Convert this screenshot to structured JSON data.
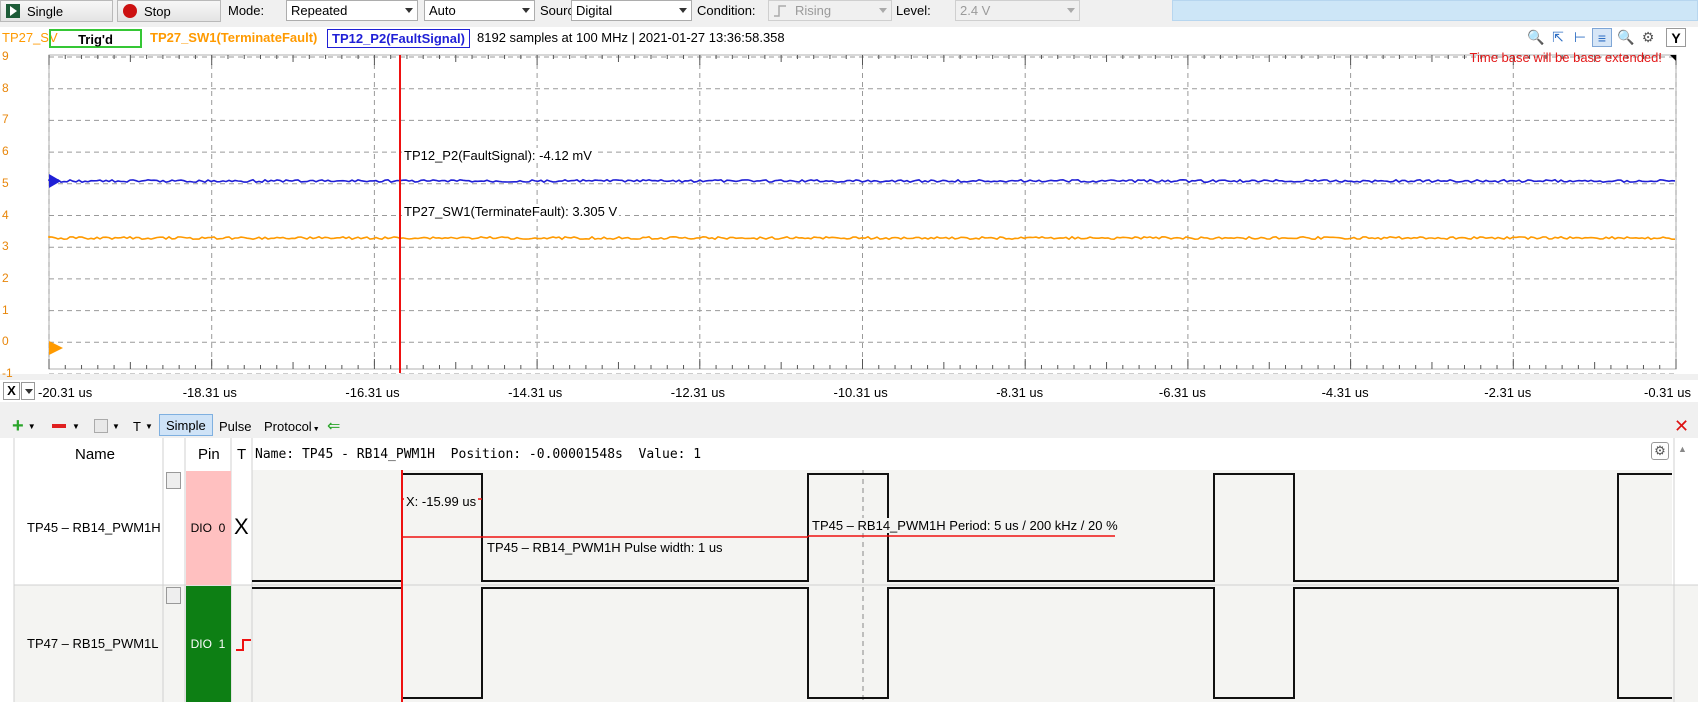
{
  "toolbar": {
    "single_label": "Single",
    "stop_label": "Stop",
    "mode_label": "Mode:",
    "mode_value": "Repeated",
    "trigger_mode_value": "Auto",
    "source_label": "Source:",
    "source_value": "Digital",
    "condition_label": "Condition:",
    "condition_value": "Rising",
    "level_label": "Level:",
    "level_value": "2.4 V"
  },
  "info": {
    "channel_prefix": "TP27_SV",
    "trig_status": "Trig'd",
    "ch1_label": "TP27_SW1(TerminateFault)",
    "ch2_label": "TP12_P2(FaultSignal)",
    "acquisition": "8192 samples at 100 MHz | 2021-01-27 13:36:58.358",
    "warning": "Time base will be base extended!"
  },
  "scope": {
    "y_ticks": [
      "9",
      "8",
      "7",
      "6",
      "5",
      "4",
      "3",
      "2",
      "1",
      "0",
      "-1"
    ],
    "cursor_readout_1": "TP12_P2(FaultSignal): -4.12 mV",
    "cursor_readout_2": "TP27_SW1(TerminateFault): 3.305 V",
    "colors": {
      "ch1": "#ff9a00",
      "ch2": "#1f1fd6",
      "cursor": "#ee1111",
      "trig": "#22cc22"
    }
  },
  "xaxis": {
    "x_button": "X",
    "ticks": [
      "-20.31 us",
      "-18.31 us",
      "-16.31 us",
      "-14.31 us",
      "-12.31 us",
      "-10.31 us",
      "-8.31 us",
      "-6.31 us",
      "-4.31 us",
      "-2.31 us",
      "-0.31 us"
    ]
  },
  "logic_toolbar": {
    "t_label": "T",
    "simple_tab": "Simple",
    "pulse_tab": "Pulse",
    "protocol_tab": "Protocol"
  },
  "logic": {
    "header_name": "Name",
    "header_pin": "Pin",
    "header_t": "T",
    "status_line": "Name: TP45 - RB14_PWM1H  Position: -0.00001548s  Value: 1",
    "signals": [
      {
        "name": "TP45 – RB14_PWM1H",
        "pin_type": "DIO",
        "pin_num": "0",
        "trigger": "X"
      },
      {
        "name": "TP47 – RB15_PWM1L",
        "pin_type": "DIO",
        "pin_num": "1",
        "trigger": ""
      }
    ],
    "x_readout": "X: -15.99 us",
    "pulse_width": "TP45 – RB14_PWM1H Pulse width: 1 us",
    "period": "TP45 – RB14_PWM1H Period: 5 us / 200 kHz / 20 %",
    "colors": {
      "dio0_bg": "#ffc0c0",
      "dio1_bg": "#0d7f14"
    }
  }
}
